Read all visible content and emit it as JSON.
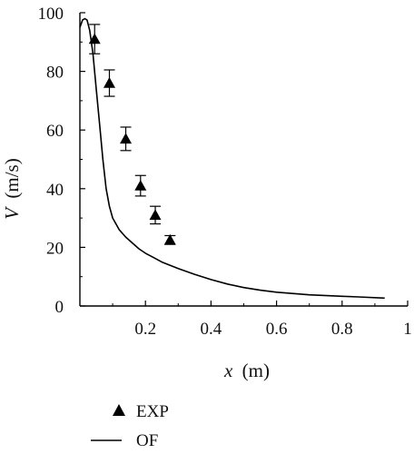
{
  "chart_data": {
    "type": "line",
    "xlabel": {
      "var": "x",
      "unit": "(m)"
    },
    "ylabel": {
      "var": "V",
      "unit": "(m/s)"
    },
    "xlim": [
      0,
      1
    ],
    "ylim": [
      0,
      100
    ],
    "x_ticks": [
      "0.2",
      "0.4",
      "0.6",
      "0.8",
      "1"
    ],
    "y_ticks": [
      "0",
      "20",
      "40",
      "60",
      "80",
      "100"
    ],
    "x_tick_values": [
      0.2,
      0.4,
      0.6,
      0.8,
      1.0
    ],
    "y_tick_values": [
      0,
      20,
      40,
      60,
      80,
      100
    ],
    "grid": false,
    "legend_placement": "bottom-left, below plot",
    "series": [
      {
        "name": "EXP",
        "kind": "scatter-errorbar",
        "marker": "triangle",
        "x": [
          0.045,
          0.09,
          0.14,
          0.185,
          0.23,
          0.275
        ],
        "y": [
          91,
          76,
          57,
          41,
          31,
          22.5
        ],
        "err_low": [
          5,
          4.5,
          4,
          3.5,
          3,
          1.5
        ],
        "err_high": [
          5,
          4.5,
          4,
          3.5,
          3,
          1.5
        ]
      },
      {
        "name": "OF",
        "kind": "line",
        "x": [
          0.0,
          0.008,
          0.015,
          0.022,
          0.03,
          0.04,
          0.05,
          0.06,
          0.07,
          0.08,
          0.09,
          0.1,
          0.12,
          0.14,
          0.16,
          0.18,
          0.2,
          0.22,
          0.25,
          0.3,
          0.35,
          0.4,
          0.45,
          0.5,
          0.55,
          0.6,
          0.7,
          0.8,
          0.85,
          0.93
        ],
        "y": [
          95,
          97.5,
          98,
          97.5,
          94,
          86,
          74,
          62,
          50,
          40,
          34,
          30,
          26,
          23.5,
          21.5,
          19.5,
          18,
          16.8,
          15,
          12.8,
          10.8,
          9,
          7.5,
          6.3,
          5.4,
          4.7,
          3.8,
          3.3,
          3.1,
          2.7
        ]
      }
    ],
    "legend": [
      {
        "label": "EXP",
        "marker": "triangle"
      },
      {
        "label": "OF",
        "marker": "line"
      }
    ]
  },
  "colors": {
    "ink": "#000000",
    "background": "#ffffff"
  }
}
